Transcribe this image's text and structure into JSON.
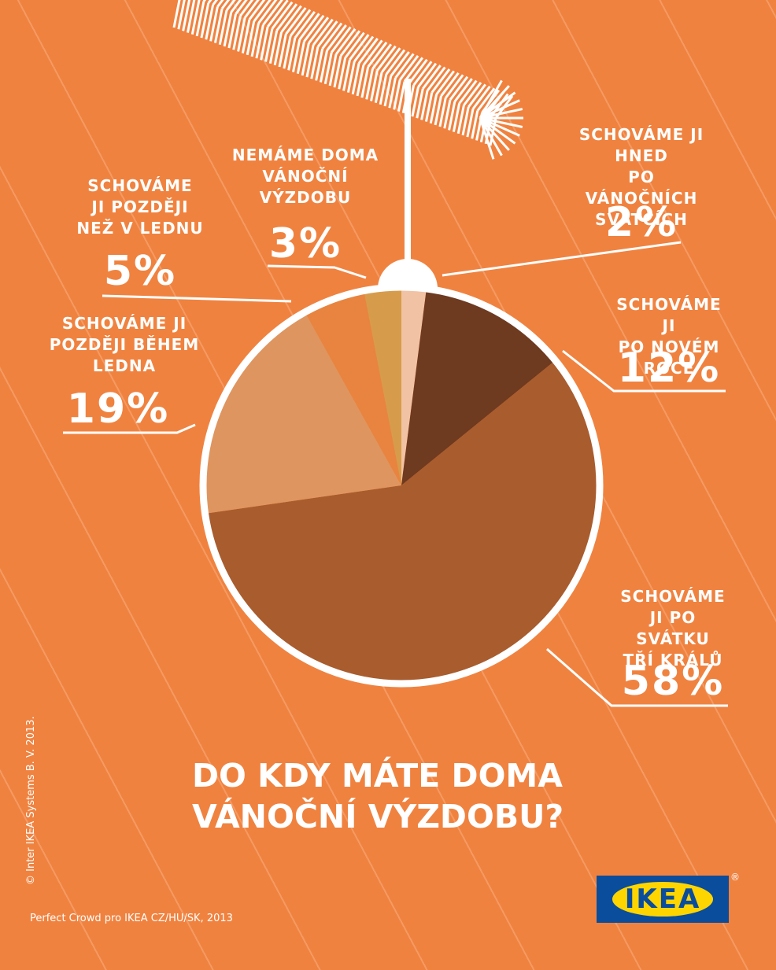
{
  "chart_data": {
    "type": "pie",
    "title": "DO KDY MÁTE DOMA\nVÁNOČNÍ VÝZDOBU?",
    "categories": [
      "SCHOVÁME JI HNED\nPO VÁNOČNÍCH\nSVÁTCÍCH",
      "SCHOVÁME JI\nPO NOVÉM ROCE",
      "SCHOVÁME\nJI PO SVÁTKU\nTŘÍ KRÁLŮ",
      "SCHOVÁME JI\nPOZDĚJI BĚHEM\nLEDNA",
      "SCHOVÁME\nJI POZDĚJI\nNEŽ V LEDNU",
      "NEMÁME DOMA\nVÁNOČNÍ\nVÝZDOBU"
    ],
    "values": [
      2,
      12,
      58,
      19,
      5,
      3
    ],
    "value_labels": [
      "2%",
      "12%",
      "58%",
      "19%",
      "5%",
      "3%"
    ],
    "colors": [
      "#f2c2a4",
      "#6e3a20",
      "#a95c2d",
      "#df955f",
      "#e8843f",
      "#d79c4b"
    ],
    "copyright": "© Inter IKEA Systems B. V. 2013.",
    "source": "Perfect Crowd pro IKEA CZ/HU/SK, 2013",
    "logo": "IKEA",
    "logo_mark": "®"
  }
}
